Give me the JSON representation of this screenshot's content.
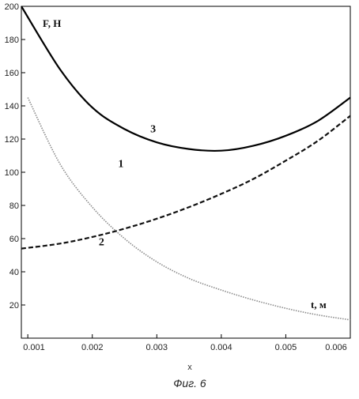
{
  "chart_data": {
    "type": "line",
    "ylabel": "F, Н",
    "xlabel": "t, м",
    "x_axis_name": "x",
    "caption": "Фиг. 6",
    "xlim": [
      0.0009,
      0.006
    ],
    "ylim": [
      0,
      200
    ],
    "x_ticks": [
      "0.001",
      "0.002",
      "0.003",
      "0.004",
      "0.005",
      "0.006"
    ],
    "y_ticks": [
      "20",
      "40",
      "60",
      "80",
      "100",
      "120",
      "140",
      "160",
      "180",
      "200"
    ],
    "grid": false,
    "series": [
      {
        "name": "1",
        "style": "dotted",
        "color": "#8a8a8a",
        "x": [
          0.001,
          0.0015,
          0.002,
          0.0025,
          0.003,
          0.0035,
          0.004,
          0.0045,
          0.005,
          0.0055,
          0.006
        ],
        "y": [
          145,
          105,
          79,
          60,
          46,
          36,
          29,
          23,
          18,
          14,
          11
        ]
      },
      {
        "name": "2",
        "style": "dashed",
        "color": "#111111",
        "x": [
          0.0009,
          0.0015,
          0.002,
          0.0025,
          0.003,
          0.0035,
          0.004,
          0.0045,
          0.005,
          0.0055,
          0.006
        ],
        "y": [
          54,
          57,
          61,
          66,
          72,
          79,
          87,
          96,
          107,
          119,
          134
        ]
      },
      {
        "name": "3",
        "style": "solid",
        "color": "#000000",
        "x": [
          0.0009,
          0.0015,
          0.002,
          0.0025,
          0.003,
          0.0035,
          0.004,
          0.0045,
          0.005,
          0.0055,
          0.006
        ],
        "y": [
          200,
          162,
          139,
          126,
          118,
          114,
          113,
          116,
          122,
          131,
          145
        ]
      }
    ],
    "curve_labels": [
      {
        "text": "1",
        "x": 0.0024,
        "y": 103
      },
      {
        "text": "2",
        "x": 0.0021,
        "y": 56
      },
      {
        "text": "3",
        "x": 0.0029,
        "y": 124
      }
    ]
  }
}
